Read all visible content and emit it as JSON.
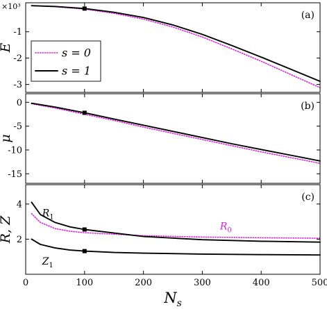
{
  "chart_data": [
    {
      "type": "line",
      "panel_label": "(a)",
      "ylabel": "E",
      "multiplier": "×10³",
      "xlim": [
        0,
        500
      ],
      "ylim": [
        -3.3,
        0.1
      ],
      "yticks": [
        {
          "value": -1,
          "label": "-1"
        },
        {
          "value": -2,
          "label": "-2"
        },
        {
          "value": -3,
          "label": "-3"
        }
      ],
      "legend": {
        "placement": "middle-left",
        "entries": [
          {
            "label": "s = 0",
            "color": "#e020e0",
            "style": "dotted"
          },
          {
            "label": "s = 1",
            "color": "#000000",
            "style": "solid"
          }
        ]
      },
      "series": [
        {
          "color": "#e020e0",
          "style": "dotted",
          "x": [
            10,
            50,
            100,
            150,
            200,
            250,
            300,
            350,
            400,
            450,
            500
          ],
          "y": [
            -0.01,
            -0.05,
            -0.14,
            -0.3,
            -0.52,
            -0.82,
            -1.2,
            -1.65,
            -2.12,
            -2.62,
            -3.12
          ]
        },
        {
          "color": "#000000",
          "style": "solid",
          "x": [
            10,
            50,
            100,
            150,
            200,
            250,
            300,
            350,
            400,
            450,
            500
          ],
          "y": [
            -0.01,
            -0.04,
            -0.12,
            -0.26,
            -0.46,
            -0.74,
            -1.1,
            -1.52,
            -1.96,
            -2.42,
            -2.88
          ]
        }
      ],
      "markers": [
        {
          "x": 100,
          "y": -0.12
        }
      ]
    },
    {
      "type": "line",
      "panel_label": "(b)",
      "ylabel": "μ",
      "xlim": [
        0,
        500
      ],
      "ylim": [
        -17,
        1.8
      ],
      "yticks": [
        {
          "value": 0,
          "label": "0"
        },
        {
          "value": -5,
          "label": "-5"
        },
        {
          "value": -10,
          "label": "-10"
        },
        {
          "value": -15,
          "label": "-15"
        }
      ],
      "series": [
        {
          "color": "#e020e0",
          "style": "dotted",
          "x": [
            10,
            50,
            100,
            150,
            200,
            250,
            300,
            350,
            400,
            450,
            500
          ],
          "y": [
            -0.3,
            -1.2,
            -2.5,
            -3.8,
            -5.2,
            -6.5,
            -7.8,
            -9.1,
            -10.4,
            -11.6,
            -12.8
          ]
        },
        {
          "color": "#000000",
          "style": "solid",
          "x": [
            10,
            50,
            100,
            150,
            200,
            250,
            300,
            350,
            400,
            450,
            500
          ],
          "y": [
            -0.2,
            -1.0,
            -2.2,
            -3.5,
            -4.8,
            -6.1,
            -7.4,
            -8.7,
            -9.9,
            -11.1,
            -12.3
          ]
        }
      ],
      "markers": [
        {
          "x": 100,
          "y": -2.2
        }
      ]
    },
    {
      "type": "line",
      "panel_label": "(c)",
      "ylabel": "R, Z",
      "xlabel": "N",
      "xlabel_sub": "s",
      "xlim": [
        0,
        500
      ],
      "ylim": [
        0,
        5.1
      ],
      "xticks": [
        {
          "value": 0,
          "label": "0"
        },
        {
          "value": 100,
          "label": "100"
        },
        {
          "value": 200,
          "label": "200"
        },
        {
          "value": 300,
          "label": "300"
        },
        {
          "value": 400,
          "label": "400"
        },
        {
          "value": 500,
          "label": "500"
        }
      ],
      "yticks": [
        {
          "value": 2,
          "label": "2"
        },
        {
          "value": 4,
          "label": "4"
        }
      ],
      "series": [
        {
          "color": "#e020e0",
          "style": "dotted",
          "x": [
            10,
            25,
            50,
            75,
            100,
            150,
            200,
            300,
            400,
            500
          ],
          "y": [
            3.45,
            2.95,
            2.6,
            2.45,
            2.37,
            2.28,
            2.2,
            2.12,
            2.08,
            2.05
          ]
        },
        {
          "color": "#000000",
          "style": "solid",
          "x": [
            10,
            25,
            50,
            75,
            100,
            150,
            200,
            300,
            400,
            500
          ],
          "y": [
            4.1,
            3.4,
            2.95,
            2.7,
            2.55,
            2.35,
            2.15,
            1.97,
            1.88,
            1.83
          ]
        },
        {
          "color": "#000000",
          "style": "solid",
          "x": [
            10,
            25,
            50,
            75,
            100,
            150,
            200,
            300,
            400,
            500
          ],
          "y": [
            2.0,
            1.7,
            1.5,
            1.38,
            1.32,
            1.24,
            1.2,
            1.15,
            1.12,
            1.1
          ]
        }
      ],
      "markers": [
        {
          "x": 100,
          "y": 2.55
        },
        {
          "x": 100,
          "y": 1.32
        }
      ],
      "annotations": [
        {
          "text": "R",
          "sub": "1",
          "x": 28,
          "y": 3.3,
          "color": "#000000"
        },
        {
          "text": "R",
          "sub": "0",
          "x": 330,
          "y": 2.55,
          "color": "#e020e0"
        },
        {
          "text": "Z",
          "sub": "1",
          "x": 28,
          "y": 0.55,
          "color": "#000000"
        }
      ]
    }
  ]
}
